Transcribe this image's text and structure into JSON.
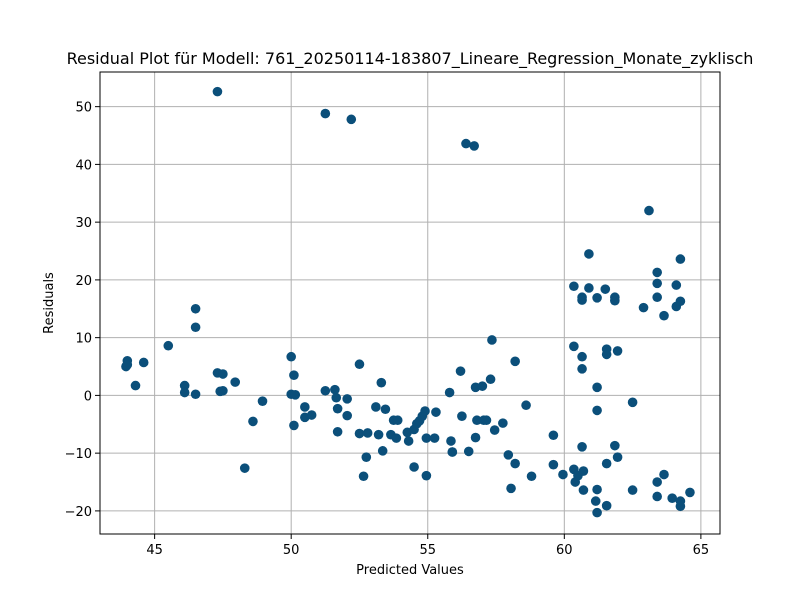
{
  "chart_data": {
    "type": "scatter",
    "title": "Residual Plot für Modell: 761_20250114-183807_Lineare_Regression_Monate_zyklisch",
    "xlabel": "Predicted Values",
    "ylabel": "Residuals",
    "xlim": [
      43,
      65.7
    ],
    "ylim": [
      -24,
      56
    ],
    "xticks": [
      45,
      50,
      55,
      60,
      65
    ],
    "xtick_labels": [
      "45",
      "50",
      "55",
      "60",
      "65"
    ],
    "yticks": [
      -20,
      -10,
      0,
      10,
      20,
      30,
      40,
      50
    ],
    "ytick_labels": [
      "−20",
      "−10",
      "0",
      "10",
      "20",
      "30",
      "40",
      "50"
    ],
    "grid": true,
    "marker_color": "#0b4f7a",
    "series": [
      {
        "name": "residuals",
        "points": [
          [
            43.95,
            5.0
          ],
          [
            44.0,
            6.0
          ],
          [
            44.0,
            5.3
          ],
          [
            44.3,
            1.7
          ],
          [
            44.6,
            5.7
          ],
          [
            45.5,
            8.6
          ],
          [
            46.1,
            1.7
          ],
          [
            46.1,
            0.5
          ],
          [
            46.5,
            15.0
          ],
          [
            46.5,
            11.8
          ],
          [
            46.5,
            0.2
          ],
          [
            47.3,
            52.6
          ],
          [
            47.3,
            3.9
          ],
          [
            47.4,
            0.7
          ],
          [
            47.5,
            3.7
          ],
          [
            47.5,
            0.8
          ],
          [
            47.95,
            2.3
          ],
          [
            48.3,
            -12.6
          ],
          [
            48.6,
            -4.5
          ],
          [
            48.95,
            -1.0
          ],
          [
            50.0,
            6.7
          ],
          [
            50.0,
            0.2
          ],
          [
            50.1,
            3.5
          ],
          [
            50.1,
            -5.2
          ],
          [
            50.15,
            0.1
          ],
          [
            50.5,
            -2.0
          ],
          [
            50.5,
            -3.8
          ],
          [
            50.75,
            -3.4
          ],
          [
            51.25,
            48.8
          ],
          [
            51.25,
            0.8
          ],
          [
            51.6,
            1.0
          ],
          [
            51.65,
            -0.4
          ],
          [
            51.7,
            -2.3
          ],
          [
            51.7,
            -6.3
          ],
          [
            52.05,
            -0.6
          ],
          [
            52.05,
            -3.5
          ],
          [
            52.2,
            47.8
          ],
          [
            52.5,
            5.4
          ],
          [
            52.5,
            -6.6
          ],
          [
            52.65,
            -14.0
          ],
          [
            52.75,
            -10.7
          ],
          [
            52.8,
            -6.5
          ],
          [
            53.1,
            -2.0
          ],
          [
            53.2,
            -6.8
          ],
          [
            53.3,
            2.2
          ],
          [
            53.35,
            -9.6
          ],
          [
            53.45,
            -2.4
          ],
          [
            53.65,
            -6.8
          ],
          [
            53.75,
            -4.3
          ],
          [
            53.85,
            -7.4
          ],
          [
            53.9,
            -4.3
          ],
          [
            54.25,
            -6.4
          ],
          [
            54.3,
            -7.9
          ],
          [
            54.5,
            -5.9
          ],
          [
            54.5,
            -12.4
          ],
          [
            54.6,
            -4.9
          ],
          [
            54.7,
            -4.4
          ],
          [
            54.8,
            -3.6
          ],
          [
            54.9,
            -2.7
          ],
          [
            54.95,
            -7.4
          ],
          [
            54.95,
            -13.9
          ],
          [
            55.25,
            -7.4
          ],
          [
            55.3,
            -2.9
          ],
          [
            55.8,
            0.5
          ],
          [
            55.85,
            -7.9
          ],
          [
            55.9,
            -9.8
          ],
          [
            55.9,
            -9.8
          ],
          [
            56.2,
            4.2
          ],
          [
            56.25,
            -3.6
          ],
          [
            56.4,
            43.6
          ],
          [
            56.5,
            -9.7
          ],
          [
            56.7,
            43.2
          ],
          [
            56.75,
            1.4
          ],
          [
            56.75,
            -7.3
          ],
          [
            56.8,
            -4.3
          ],
          [
            57.0,
            1.6
          ],
          [
            57.05,
            -4.3
          ],
          [
            57.15,
            -4.3
          ],
          [
            57.3,
            2.8
          ],
          [
            57.35,
            9.6
          ],
          [
            57.45,
            -6.0
          ],
          [
            57.75,
            -4.8
          ],
          [
            57.95,
            -10.3
          ],
          [
            58.05,
            -16.1
          ],
          [
            58.2,
            5.9
          ],
          [
            58.2,
            -11.8
          ],
          [
            58.6,
            -1.7
          ],
          [
            58.8,
            -14.0
          ],
          [
            59.6,
            -12.0
          ],
          [
            59.6,
            -6.9
          ],
          [
            59.95,
            -13.7
          ],
          [
            60.35,
            18.9
          ],
          [
            60.35,
            8.5
          ],
          [
            60.35,
            -12.8
          ],
          [
            60.4,
            -15.0
          ],
          [
            60.5,
            -13.9
          ],
          [
            60.65,
            17.0
          ],
          [
            60.65,
            16.5
          ],
          [
            60.65,
            6.7
          ],
          [
            60.65,
            4.6
          ],
          [
            60.65,
            -8.9
          ],
          [
            60.7,
            -13.1
          ],
          [
            60.7,
            -16.4
          ],
          [
            60.9,
            24.5
          ],
          [
            60.9,
            18.6
          ],
          [
            61.15,
            -18.3
          ],
          [
            61.2,
            16.9
          ],
          [
            61.2,
            1.4
          ],
          [
            61.2,
            -2.6
          ],
          [
            61.2,
            -16.3
          ],
          [
            61.2,
            -20.3
          ],
          [
            61.5,
            18.4
          ],
          [
            61.55,
            8.0
          ],
          [
            61.55,
            7.1
          ],
          [
            61.55,
            -11.8
          ],
          [
            61.55,
            -19.1
          ],
          [
            61.85,
            17.0
          ],
          [
            61.85,
            16.4
          ],
          [
            61.85,
            -8.7
          ],
          [
            61.95,
            7.7
          ],
          [
            61.95,
            -10.7
          ],
          [
            62.5,
            -1.2
          ],
          [
            62.5,
            -16.4
          ],
          [
            62.9,
            15.2
          ],
          [
            63.1,
            32.0
          ],
          [
            63.4,
            21.3
          ],
          [
            63.4,
            19.4
          ],
          [
            63.4,
            17.0
          ],
          [
            63.4,
            -15.0
          ],
          [
            63.4,
            -17.5
          ],
          [
            63.65,
            13.8
          ],
          [
            63.65,
            -13.7
          ],
          [
            63.95,
            -17.8
          ],
          [
            64.1,
            19.1
          ],
          [
            64.1,
            15.4
          ],
          [
            64.25,
            23.6
          ],
          [
            64.25,
            16.3
          ],
          [
            64.25,
            -18.3
          ],
          [
            64.25,
            -19.2
          ],
          [
            64.6,
            -16.8
          ]
        ]
      }
    ]
  }
}
